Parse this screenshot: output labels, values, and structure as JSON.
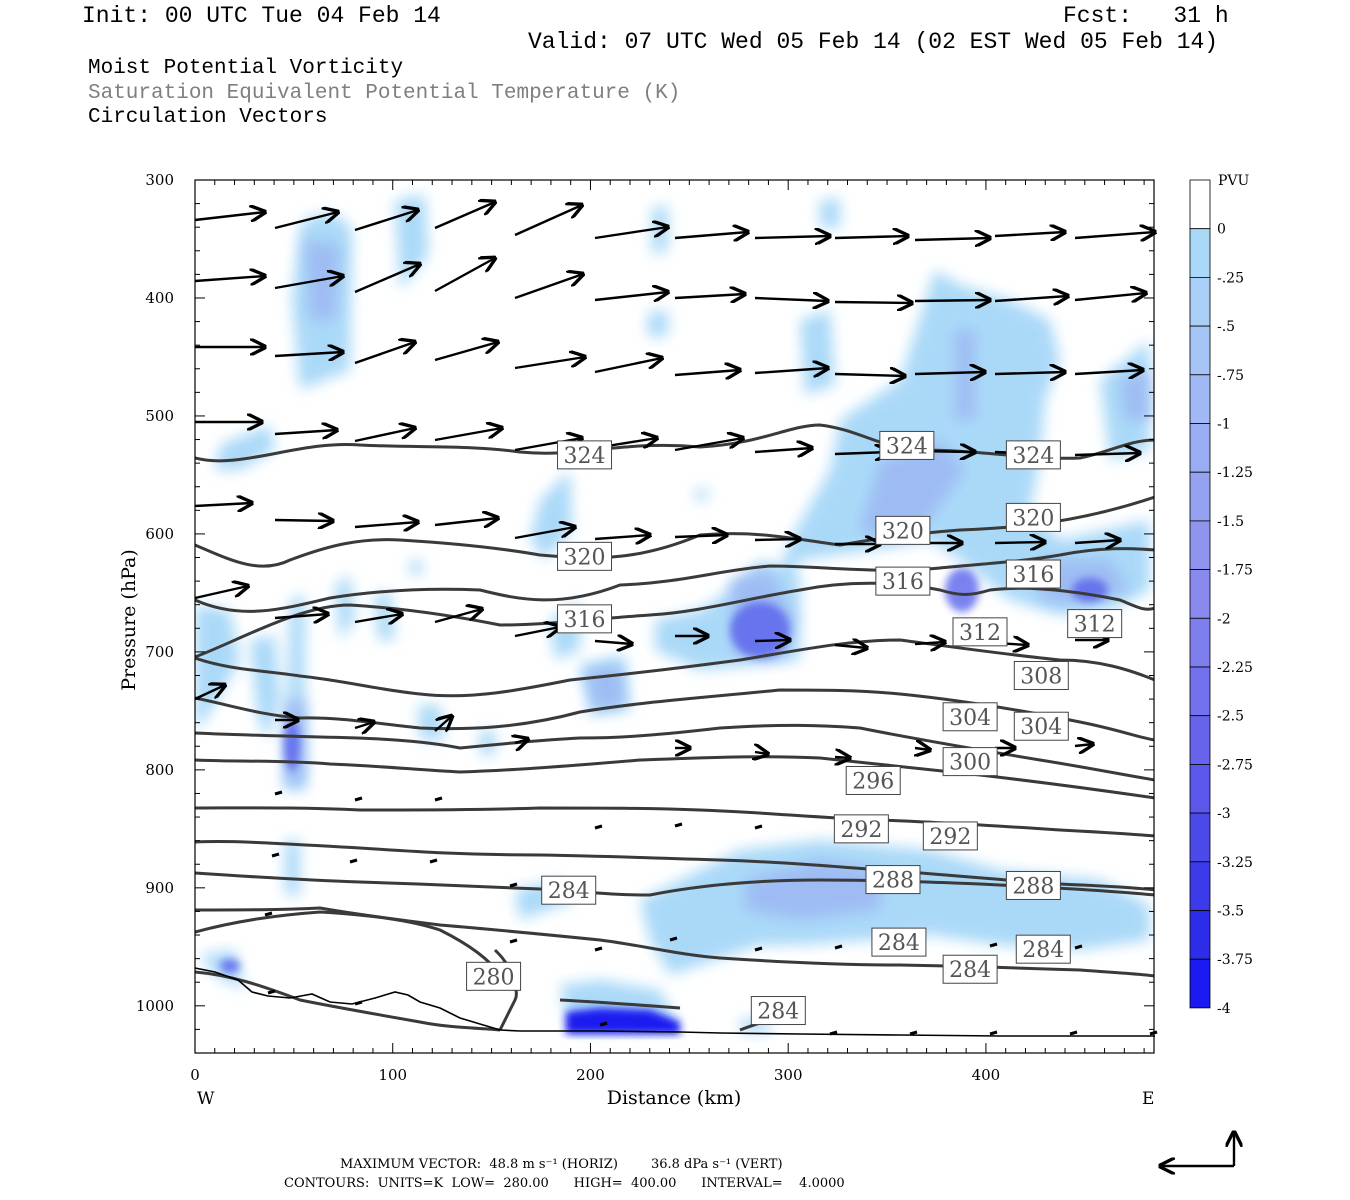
{
  "header": {
    "init": "Init: 00 UTC Tue 04 Feb 14",
    "fcst": "Fcst:   31 h",
    "valid": "Valid: 07 UTC Wed 05 Feb 14 (02 EST Wed 05 Feb 14)"
  },
  "fields": {
    "line1": "Moist Potential Vorticity",
    "line2": "Saturation Equivalent Potential Temperature (K)",
    "line3": "Circulation Vectors"
  },
  "footer": {
    "max_vector": "MAXIMUM VECTOR:  48.8 m s⁻¹ (HORIZ)        36.8 dPa s⁻¹ (VERT)",
    "contours": "CONTOURS:  UNITS=K  LOW=  280.00      HIGH=  400.00      INTERVAL=    4.0000"
  },
  "colors": {
    "pv_fill_light": "#aad9f8",
    "pv_fill_mid": "#9cb8f3",
    "pv_fill_strong": "#5a63ec",
    "pv_fill_max": "#1a1af0",
    "contour": "#3a3a3a"
  },
  "chart_data": {
    "type": "cross-section",
    "xlabel": "Distance (km)",
    "ylabel": "Pressure (hPa)",
    "xlim": [
      0,
      485
    ],
    "ylim": [
      1040,
      300
    ],
    "x_ticks": [
      0,
      100,
      200,
      300,
      400
    ],
    "y_ticks": [
      300,
      400,
      500,
      600,
      700,
      800,
      900,
      1000
    ],
    "x_end_labels": {
      "left": "W",
      "right": "E"
    },
    "grid": false,
    "colorbar": {
      "title": "PVU",
      "labels": [
        "0",
        "-.25",
        "-.5",
        "-.75",
        "-1",
        "-1.25",
        "-1.5",
        "-1.75",
        "-2",
        "-2.25",
        "-2.5",
        "-2.75",
        "-3",
        "-3.25",
        "-3.5",
        "-3.75",
        "-4"
      ],
      "colors": [
        "#ffffff",
        "#aad9f8",
        "#a9cff7",
        "#a6c4f6",
        "#a0b8f4",
        "#9aadf3",
        "#95a1f1",
        "#8f95ef",
        "#8989ee",
        "#7f7eed",
        "#7371ec",
        "#6764eb",
        "#5a57ea",
        "#4c49e9",
        "#3d3be9",
        "#2d2ce9",
        "#1a1af0"
      ]
    },
    "contour_labels": [
      {
        "value": "324",
        "x": 197,
        "p": 533
      },
      {
        "value": "324",
        "x": 360,
        "p": 525
      },
      {
        "value": "324",
        "x": 424,
        "p": 533
      },
      {
        "value": "320",
        "x": 197,
        "p": 619
      },
      {
        "value": "320",
        "x": 358,
        "p": 597
      },
      {
        "value": "320",
        "x": 424,
        "p": 586
      },
      {
        "value": "316",
        "x": 197,
        "p": 672
      },
      {
        "value": "316",
        "x": 358,
        "p": 640
      },
      {
        "value": "316",
        "x": 424,
        "p": 634
      },
      {
        "value": "312",
        "x": 397,
        "p": 683
      },
      {
        "value": "312",
        "x": 455,
        "p": 676
      },
      {
        "value": "308",
        "x": 428,
        "p": 720
      },
      {
        "value": "304",
        "x": 392,
        "p": 755
      },
      {
        "value": "304",
        "x": 428,
        "p": 763
      },
      {
        "value": "300",
        "x": 392,
        "p": 793
      },
      {
        "value": "296",
        "x": 343,
        "p": 809
      },
      {
        "value": "292",
        "x": 337,
        "p": 850
      },
      {
        "value": "292",
        "x": 382,
        "p": 856
      },
      {
        "value": "288",
        "x": 353,
        "p": 893
      },
      {
        "value": "288",
        "x": 424,
        "p": 898
      },
      {
        "value": "284",
        "x": 189,
        "p": 902
      },
      {
        "value": "284",
        "x": 356,
        "p": 946
      },
      {
        "value": "284",
        "x": 392,
        "p": 969
      },
      {
        "value": "284",
        "x": 429,
        "p": 952
      },
      {
        "value": "284",
        "x": 295,
        "p": 1004
      },
      {
        "value": "280",
        "x": 151,
        "p": 975
      }
    ],
    "contour_low": 280,
    "contour_high": 400,
    "contour_interval": 4
  }
}
